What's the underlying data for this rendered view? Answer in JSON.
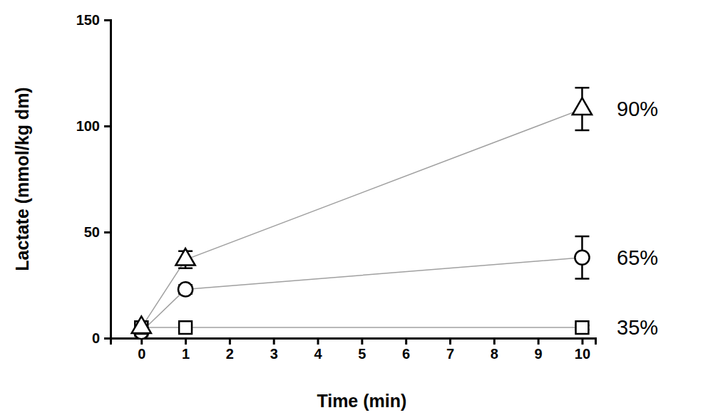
{
  "chart_data": {
    "type": "line",
    "x_label": "Time (min)",
    "y_label": "Lactate (mmol/kg dm)",
    "x": [
      0,
      1,
      10
    ],
    "xlim": [
      -0.7,
      10.3
    ],
    "xticks": [
      0,
      1,
      2,
      3,
      4,
      5,
      6,
      7,
      8,
      9,
      10
    ],
    "ylim": [
      0,
      150
    ],
    "yticks": [
      0,
      50,
      100,
      150
    ],
    "grid": false,
    "series": [
      {
        "name": "35%",
        "color": "#000000",
        "marker": "square",
        "line_style": "solid",
        "values": [
          5,
          5,
          5
        ],
        "errors": [
          2,
          1,
          1
        ]
      },
      {
        "name": "65%",
        "color": "#000000",
        "marker": "circle",
        "line_style": "solid",
        "values": [
          3,
          23,
          38
        ],
        "errors": [
          2,
          2,
          10
        ]
      },
      {
        "name": "90%",
        "color": "#000000",
        "marker": "triangle",
        "line_style": "solid",
        "values": [
          5,
          37,
          108
        ],
        "errors": [
          3,
          4,
          10
        ]
      }
    ]
  }
}
